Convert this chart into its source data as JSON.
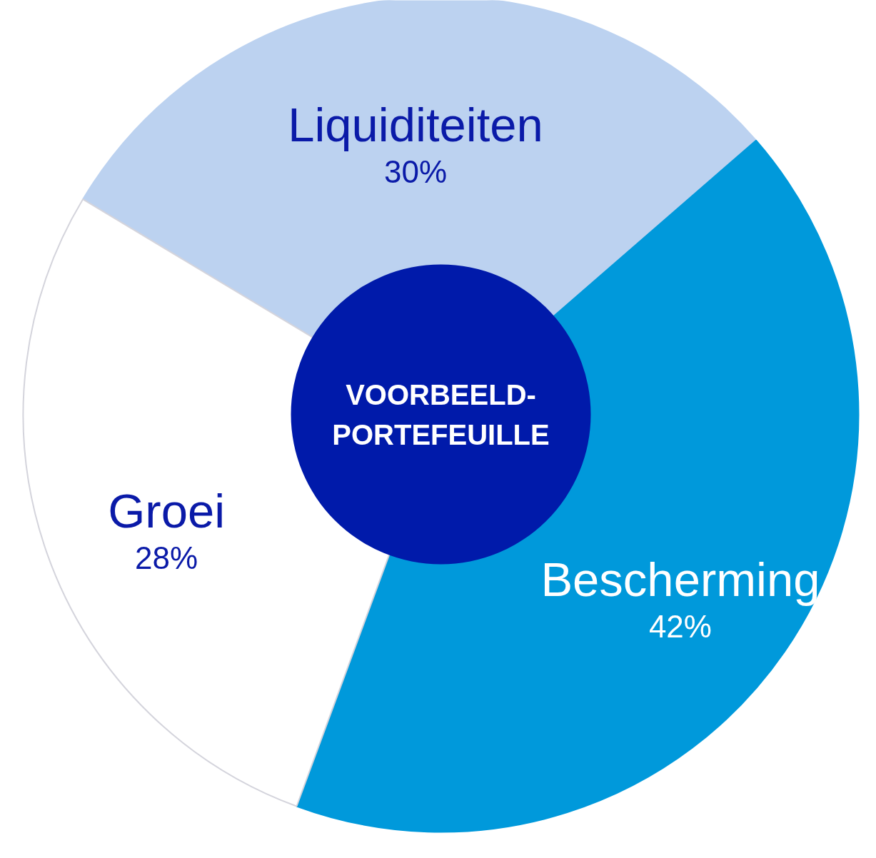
{
  "chart_data": {
    "type": "donut",
    "title": "VOORBEELD-\nPORTEFEUILLE",
    "categories": [
      "Liquiditeiten",
      "Bescherming",
      "Groei"
    ],
    "values": [
      30,
      42,
      28
    ],
    "colors": [
      "#bcd2f0",
      "#0099db",
      "#ffffff"
    ],
    "value_labels": [
      "30%",
      "42%",
      "28%"
    ]
  }
}
